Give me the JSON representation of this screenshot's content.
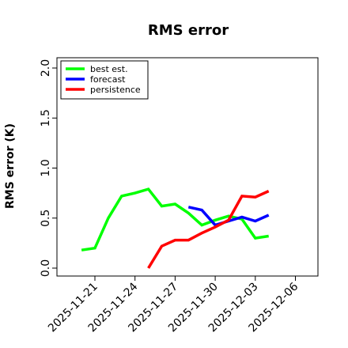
{
  "chart_data": {
    "type": "line",
    "title": "RMS error",
    "ylabel": "RMS error (K)",
    "xlabel": "",
    "ylim": [
      0.0,
      2.0
    ],
    "yticks": [
      "0.0",
      "0.5",
      "1.0",
      "1.5",
      "2.0"
    ],
    "xticks": [
      {
        "label": "2025-11-21",
        "color": "#000000"
      },
      {
        "label": "2025-11-24",
        "color": "#000000"
      },
      {
        "label": "2025-11-27",
        "color": "#228b22"
      },
      {
        "label": "2025-11-30",
        "color": "#000000"
      },
      {
        "label": "2025-12-03",
        "color": "#000000"
      },
      {
        "label": "2025-12-06",
        "color": "#000000"
      }
    ],
    "legend": "top-left",
    "grid": false,
    "series": [
      {
        "name": "best est.",
        "color": "#00ff00",
        "x": [
          "2025-11-20",
          "2025-11-21",
          "2025-11-22",
          "2025-11-23",
          "2025-11-24",
          "2025-11-25",
          "2025-11-26",
          "2025-11-27",
          "2025-11-28",
          "2025-11-29",
          "2025-11-30",
          "2025-12-01",
          "2025-12-02",
          "2025-12-03",
          "2025-12-04"
        ],
        "values": [
          0.18,
          0.2,
          0.5,
          0.72,
          0.75,
          0.79,
          0.62,
          0.64,
          0.55,
          0.43,
          0.48,
          0.52,
          0.49,
          0.3,
          0.32
        ]
      },
      {
        "name": "forecast",
        "color": "#0000ff",
        "x": [
          "2025-11-28",
          "2025-11-29",
          "2025-11-30",
          "2025-12-01",
          "2025-12-02",
          "2025-12-03",
          "2025-12-04"
        ],
        "values": [
          0.61,
          0.58,
          0.43,
          0.47,
          0.51,
          0.47,
          0.53
        ]
      },
      {
        "name": "persistence",
        "color": "#ff0000",
        "x": [
          "2025-11-25",
          "2025-11-26",
          "2025-11-27",
          "2025-11-28",
          "2025-11-29",
          "2025-11-30",
          "2025-12-01",
          "2025-12-02",
          "2025-12-03",
          "2025-12-04"
        ],
        "values": [
          0.0,
          0.22,
          0.28,
          0.28,
          0.35,
          0.41,
          0.48,
          0.72,
          0.71,
          0.77
        ]
      }
    ]
  }
}
